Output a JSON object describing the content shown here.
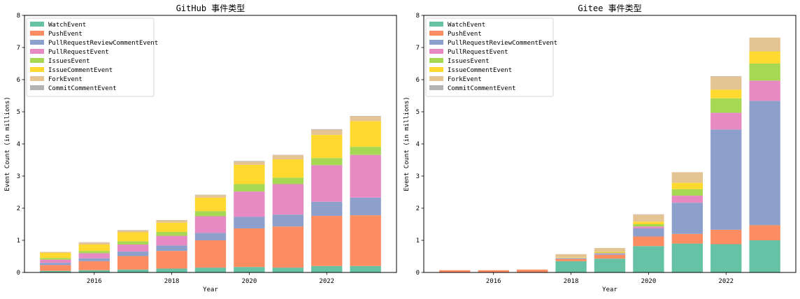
{
  "colors": {
    "WatchEvent": "#66c2a5",
    "PushEvent": "#fc8d62",
    "PullRequestReviewCommentEvent": "#8da0cb",
    "PullRequestEvent": "#e78ac3",
    "IssuesEvent": "#a6d854",
    "IssueCommentEvent": "#ffd92f",
    "ForkEvent": "#e5c494",
    "CommitCommentEvent": "#b3b3b3"
  },
  "chart_data": [
    {
      "type": "bar",
      "stacked": true,
      "title": "GitHub 事件类型",
      "xlabel": "Year",
      "ylabel": "Event Count (in millions)",
      "ylim": [
        0,
        8
      ],
      "yticks": [
        0,
        1,
        2,
        3,
        4,
        5,
        6,
        7,
        8
      ],
      "xticks": [
        2016,
        2018,
        2020,
        2022
      ],
      "legend_position": "top-left",
      "grid": false,
      "categories": [
        2015,
        2016,
        2017,
        2018,
        2019,
        2020,
        2021,
        2022,
        2023
      ],
      "series": [
        {
          "name": "WatchEvent",
          "values": [
            0.05,
            0.07,
            0.09,
            0.12,
            0.15,
            0.17,
            0.15,
            0.2,
            0.2
          ]
        },
        {
          "name": "PushEvent",
          "values": [
            0.18,
            0.28,
            0.42,
            0.55,
            0.85,
            1.2,
            1.28,
            1.56,
            1.58
          ]
        },
        {
          "name": "PullRequestReviewCommentEvent",
          "values": [
            0.07,
            0.09,
            0.14,
            0.17,
            0.23,
            0.36,
            0.37,
            0.44,
            0.55
          ]
        },
        {
          "name": "PullRequestEvent",
          "values": [
            0.1,
            0.16,
            0.22,
            0.3,
            0.52,
            0.79,
            0.95,
            1.14,
            1.33
          ]
        },
        {
          "name": "IssuesEvent",
          "values": [
            0.05,
            0.07,
            0.1,
            0.12,
            0.16,
            0.23,
            0.2,
            0.22,
            0.25
          ]
        },
        {
          "name": "IssueCommentEvent",
          "values": [
            0.16,
            0.2,
            0.28,
            0.29,
            0.42,
            0.6,
            0.57,
            0.72,
            0.8
          ]
        },
        {
          "name": "ForkEvent",
          "values": [
            0.03,
            0.06,
            0.06,
            0.07,
            0.08,
            0.1,
            0.13,
            0.16,
            0.15
          ]
        },
        {
          "name": "CommitCommentEvent",
          "values": [
            0.0,
            0.01,
            0.01,
            0.01,
            0.01,
            0.02,
            0.01,
            0.02,
            0.01
          ]
        }
      ]
    },
    {
      "type": "bar",
      "stacked": true,
      "title": "Gitee 事件类型",
      "xlabel": "Year",
      "ylabel": "Event Count (in millions)",
      "ylim": [
        0,
        8
      ],
      "yticks": [
        0,
        1,
        2,
        3,
        4,
        5,
        6,
        7,
        8
      ],
      "xticks": [
        2016,
        2018,
        2020,
        2022
      ],
      "legend_position": "top-left",
      "grid": false,
      "categories": [
        2015,
        2016,
        2017,
        2018,
        2019,
        2020,
        2021,
        2022,
        2023
      ],
      "series": [
        {
          "name": "WatchEvent",
          "values": [
            0.0,
            0.0,
            0.0,
            0.35,
            0.43,
            0.82,
            0.9,
            0.88,
            1.0
          ]
        },
        {
          "name": "PushEvent",
          "values": [
            0.07,
            0.07,
            0.09,
            0.07,
            0.12,
            0.3,
            0.3,
            0.45,
            0.47
          ]
        },
        {
          "name": "PullRequestReviewCommentEvent",
          "values": [
            0.0,
            0.0,
            0.0,
            0.02,
            0.03,
            0.25,
            0.97,
            3.12,
            3.87
          ]
        },
        {
          "name": "PullRequestEvent",
          "values": [
            0.0,
            0.0,
            0.0,
            0.01,
            0.02,
            0.06,
            0.22,
            0.52,
            0.63
          ]
        },
        {
          "name": "IssuesEvent",
          "values": [
            0.0,
            0.0,
            0.0,
            0.01,
            0.02,
            0.07,
            0.2,
            0.45,
            0.53
          ]
        },
        {
          "name": "IssueCommentEvent",
          "values": [
            0.0,
            0.0,
            0.0,
            0.01,
            0.02,
            0.08,
            0.2,
            0.27,
            0.38
          ]
        },
        {
          "name": "ForkEvent",
          "values": [
            0.0,
            0.0,
            0.0,
            0.1,
            0.12,
            0.22,
            0.33,
            0.41,
            0.43
          ]
        },
        {
          "name": "CommitCommentEvent",
          "values": [
            0.0,
            0.0,
            0.0,
            0.0,
            0.0,
            0.01,
            0.0,
            0.01,
            0.0
          ]
        }
      ]
    }
  ]
}
